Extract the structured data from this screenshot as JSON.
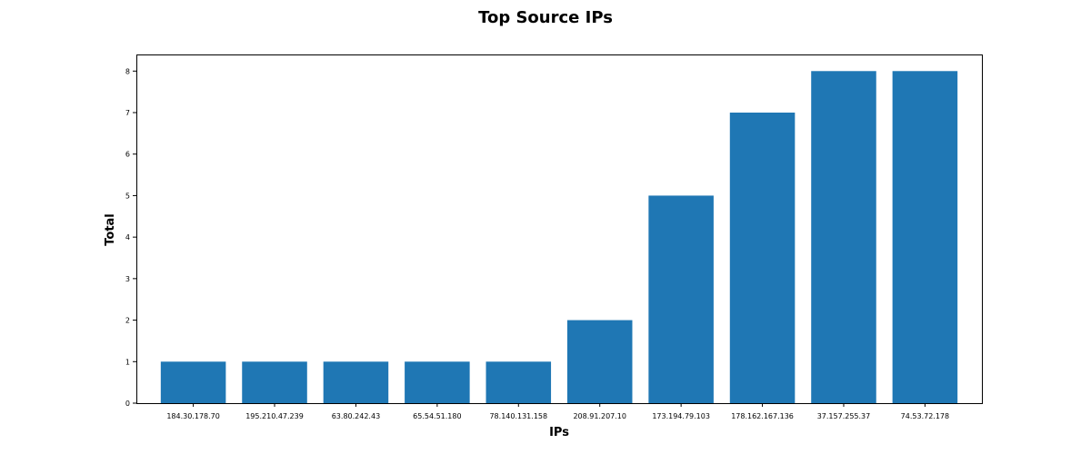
{
  "chart_data": {
    "type": "bar",
    "title": "Top Source IPs",
    "xlabel": "IPs",
    "ylabel": "Total",
    "categories": [
      "184.30.178.70",
      "195.210.47.239",
      "63.80.242.43",
      "65.54.51.180",
      "78.140.131.158",
      "208.91.207.10",
      "173.194.79.103",
      "178.162.167.136",
      "37.157.255.37",
      "74.53.72.178"
    ],
    "values": [
      1,
      1,
      1,
      1,
      1,
      2,
      5,
      7,
      8,
      8
    ],
    "ylim": [
      0,
      8.4
    ],
    "yticks": [
      "0",
      "1",
      "2",
      "3",
      "4",
      "5",
      "6",
      "7",
      "8"
    ],
    "grid": false,
    "bar_color": "#1f77b4"
  }
}
